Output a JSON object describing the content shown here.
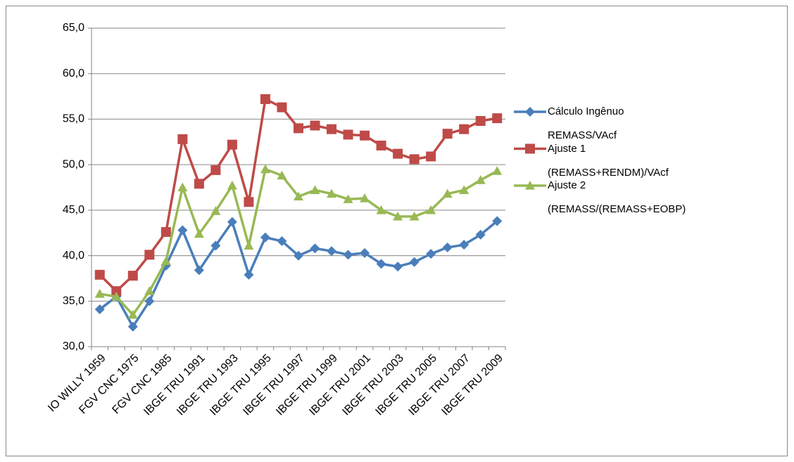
{
  "chart_data": {
    "type": "line",
    "categories": [
      "IO WILLY 1959",
      null,
      "FGV CNC 1975",
      null,
      "FGV CNC 1985",
      null,
      "IBGE TRU 1991",
      null,
      "IBGE TRU 1993",
      null,
      "IBGE TRU 1995",
      null,
      "IBGE TRU 1997",
      null,
      "IBGE TRU 1999",
      null,
      "IBGE TRU 2001",
      null,
      "IBGE TRU 2003",
      null,
      "IBGE TRU 2005",
      null,
      "IBGE TRU 2007",
      null,
      "IBGE TRU 2009"
    ],
    "series": [
      {
        "name": "Cálculo Ingênuo REMASS/VAcf",
        "color": "#4a7ebb",
        "marker": "diamond",
        "values": [
          34.1,
          35.5,
          32.2,
          35.0,
          38.9,
          42.8,
          38.4,
          41.1,
          43.7,
          37.9,
          42.0,
          41.6,
          40.0,
          40.8,
          40.5,
          40.1,
          40.3,
          39.1,
          38.8,
          39.3,
          40.2,
          40.9,
          41.2,
          42.3,
          43.8
        ]
      },
      {
        "name": "Ajuste 1 (REMASS+RENDM)/VAcf",
        "color": "#be4b48",
        "marker": "square",
        "values": [
          37.9,
          36.1,
          37.8,
          40.1,
          42.6,
          52.8,
          47.9,
          49.4,
          52.2,
          45.9,
          57.2,
          56.3,
          54.0,
          54.3,
          53.9,
          53.3,
          53.2,
          52.1,
          51.2,
          50.6,
          50.9,
          53.4,
          53.9,
          54.8,
          55.1
        ]
      },
      {
        "name": "Ajuste 2 (REMASS/(REMASS+EOBP)",
        "color": "#98b954",
        "marker": "triangle",
        "values": [
          35.8,
          35.5,
          33.5,
          36.1,
          39.4,
          47.5,
          42.4,
          44.9,
          47.7,
          41.1,
          49.5,
          48.8,
          46.5,
          47.2,
          46.8,
          46.2,
          46.3,
          45.0,
          44.3,
          44.3,
          45.0,
          46.8,
          47.2,
          48.3,
          49.3
        ]
      }
    ],
    "ylim": [
      30,
      65
    ],
    "yticks": [
      {
        "value": 30,
        "label": "30,0"
      },
      {
        "value": 35,
        "label": "35,0"
      },
      {
        "value": 40,
        "label": "40,0"
      },
      {
        "value": 45,
        "label": "45,0"
      },
      {
        "value": 50,
        "label": "50,0"
      },
      {
        "value": 55,
        "label": "55,0"
      },
      {
        "value": 60,
        "label": "60,0"
      },
      {
        "value": 65,
        "label": "65,0"
      }
    ],
    "grid": true,
    "legend": "right"
  }
}
